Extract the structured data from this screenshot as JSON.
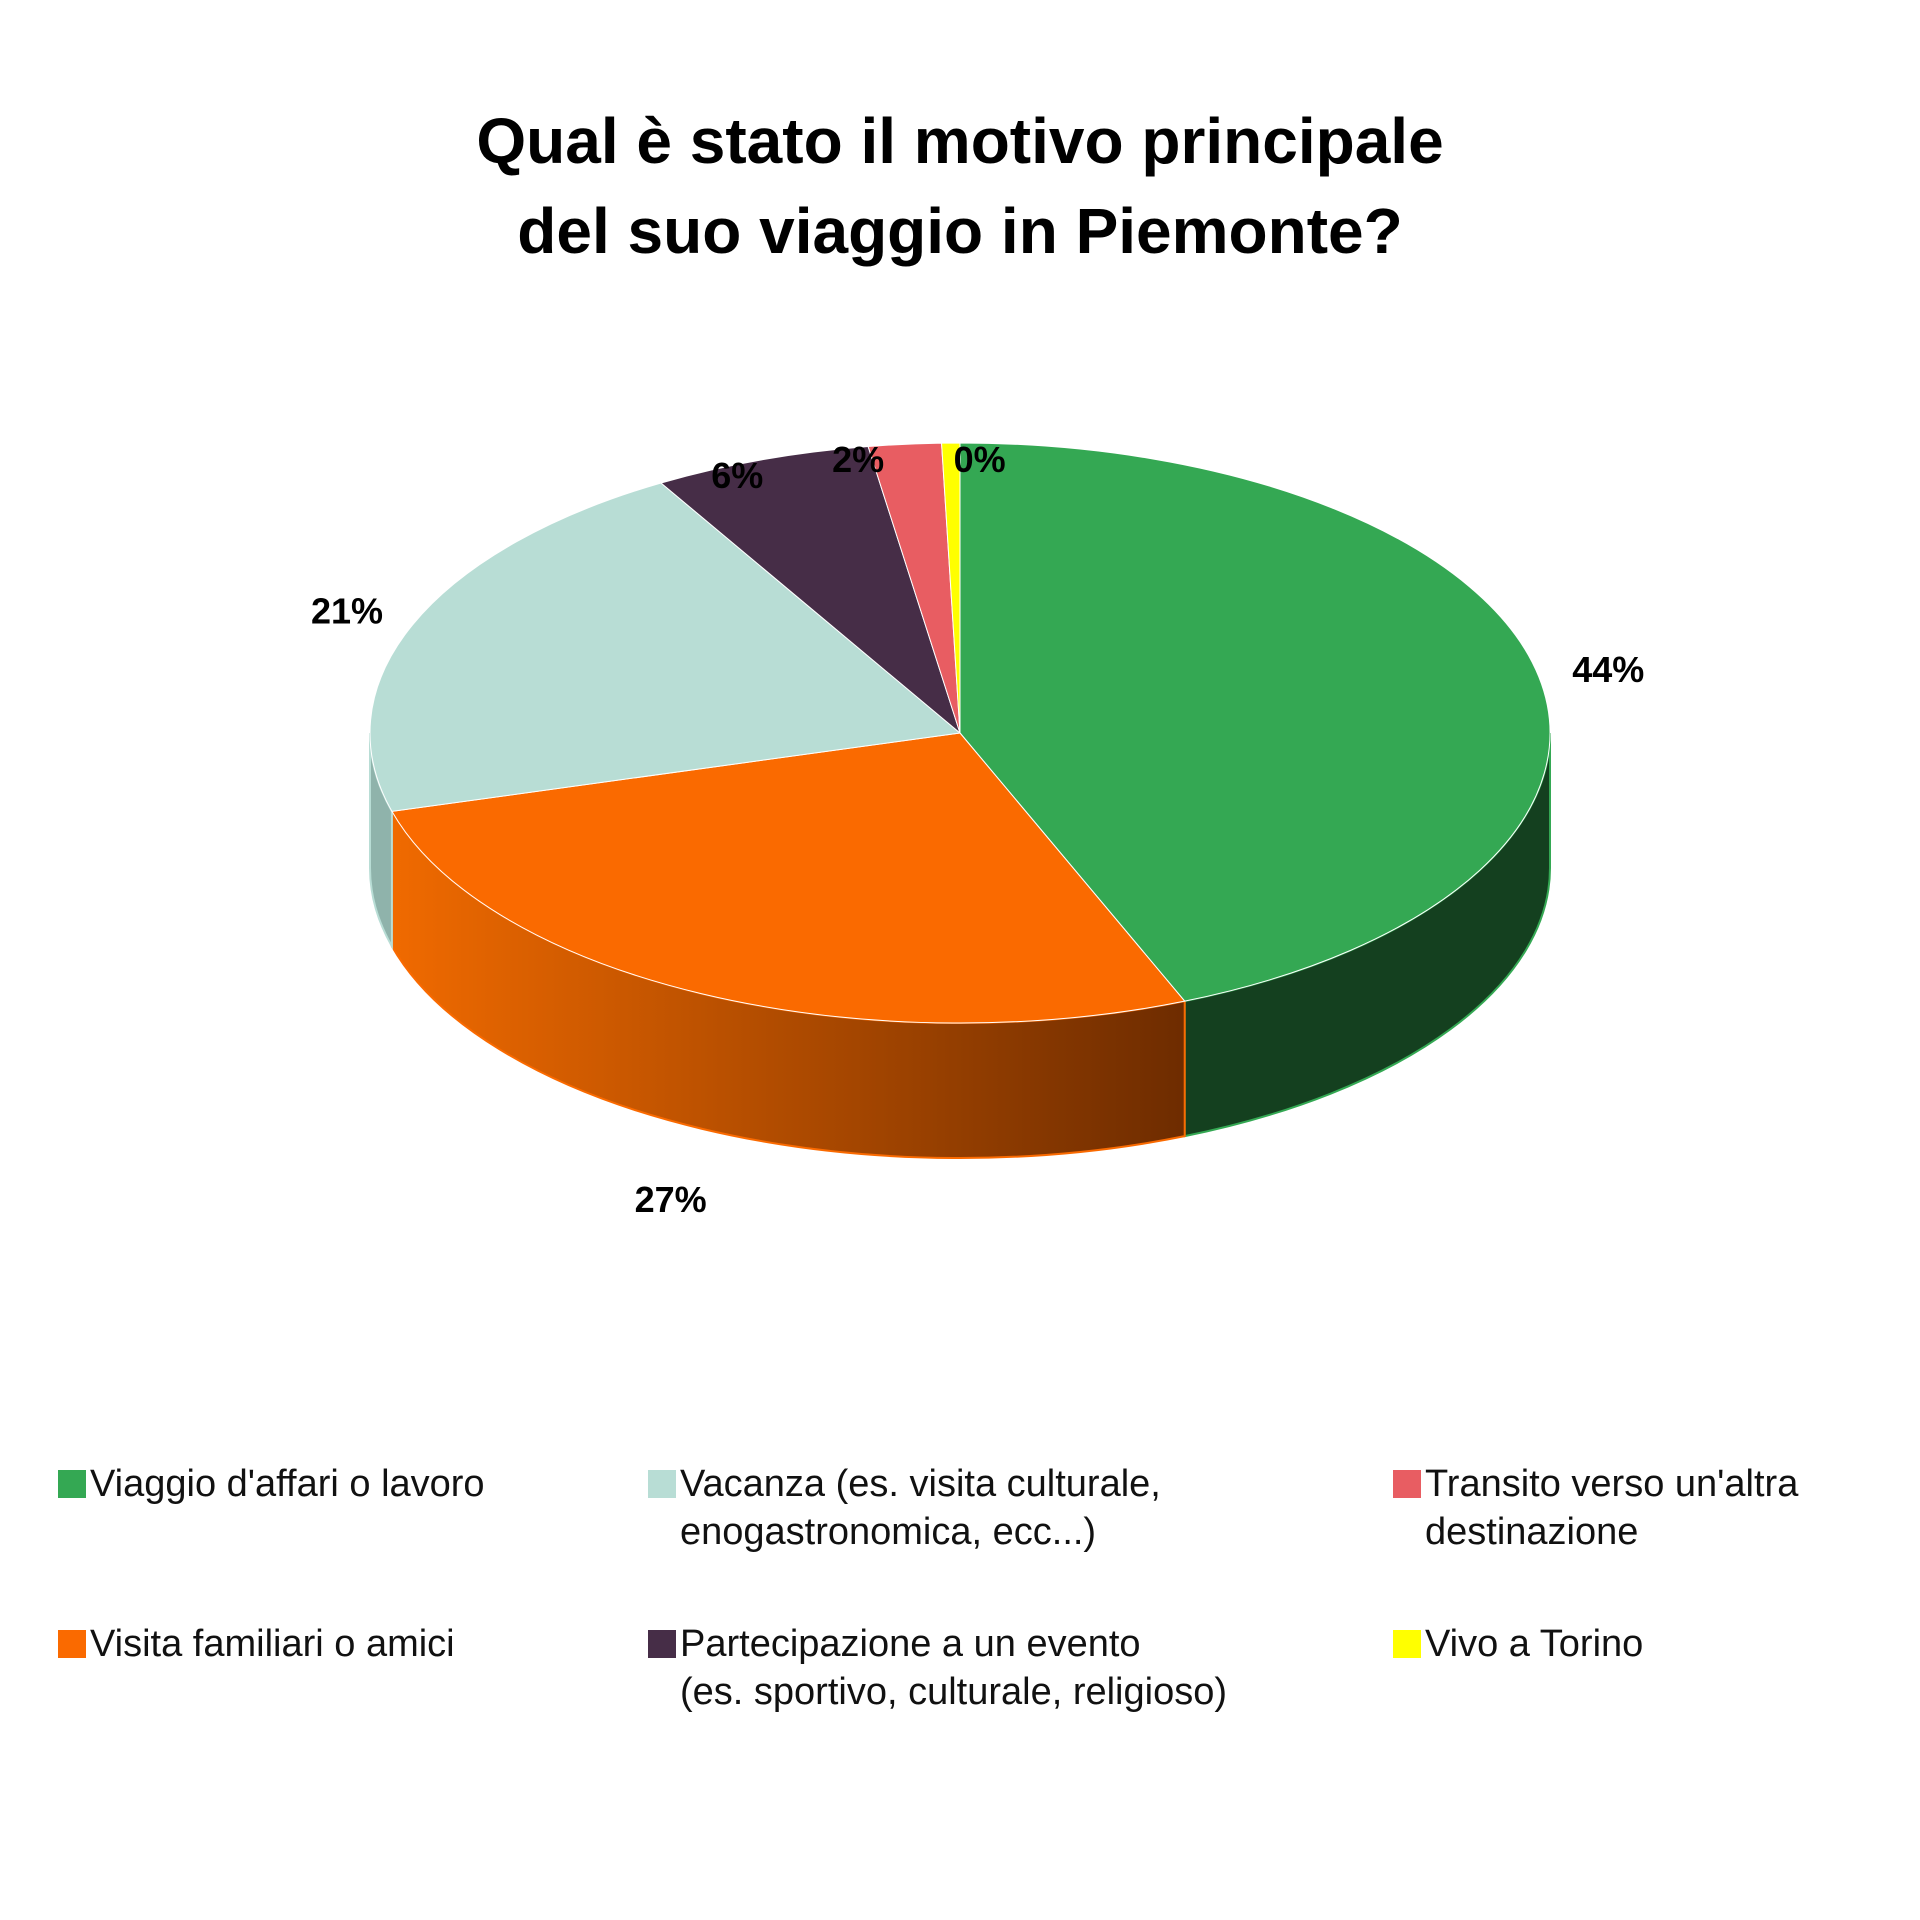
{
  "chart_data": {
    "type": "pie",
    "title_lines": [
      "Qual è stato il motivo principale",
      "del suo viaggio in Piemonte?"
    ],
    "slices": [
      {
        "label": "Viaggio d'affari o lavoro",
        "value": 44,
        "display": "44%",
        "color": "#34a853",
        "side_color": "#14401f"
      },
      {
        "label": "Visita familiari o amici",
        "value": 27,
        "display": "27%",
        "color": "#fa6a00",
        "side_color": "#b84c00"
      },
      {
        "label": "Vacanza (es. visita culturale,\nenogastronomica, ecc...)",
        "value": 21,
        "display": "21%",
        "color": "#b8ddd5",
        "side_color": "#8fb3ab"
      },
      {
        "label": "Partecipazione a un evento\n(es. sportivo, culturale, religioso)",
        "value": 6,
        "display": "6%",
        "color": "#462d47",
        "side_color": "#2a1a2b"
      },
      {
        "label": "Transito verso un'altra\ndestinazione",
        "value": 2,
        "display": "2%",
        "color": "#e85d62",
        "side_color": "#a83c40"
      },
      {
        "label": "Vivo a Torino",
        "value": 0.5,
        "display": "0%",
        "color": "#ffff00",
        "side_color": "#b3b300"
      }
    ],
    "legend_order": [
      0,
      2,
      4,
      1,
      3,
      5
    ],
    "legend_position": "bottom"
  }
}
